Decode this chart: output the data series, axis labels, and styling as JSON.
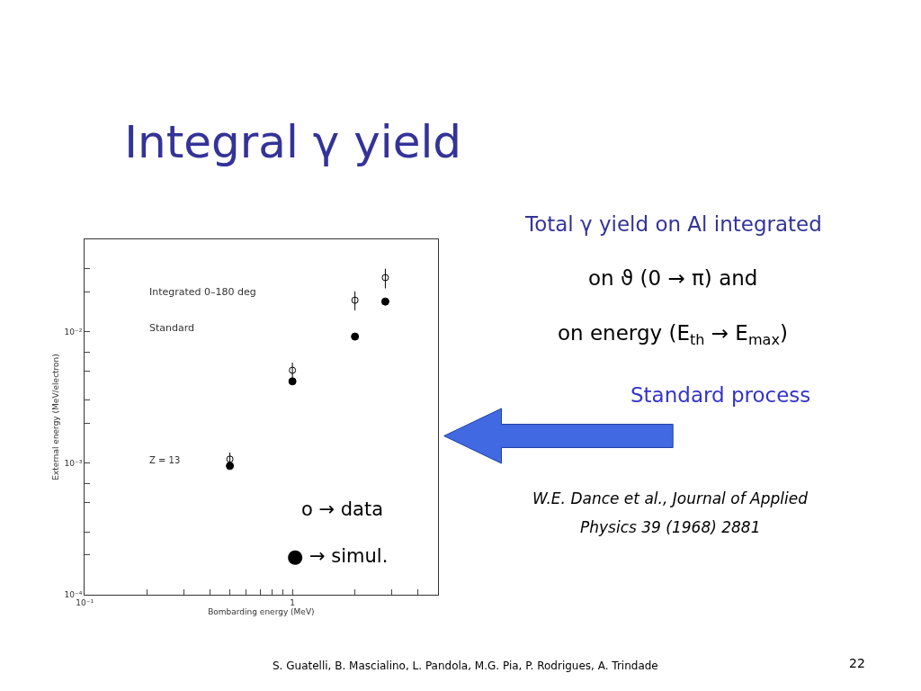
{
  "chart_data": {
    "type": "scatter",
    "title": "Integral γ yield",
    "xlabel": "Bombarding energy (MeV)",
    "ylabel": "External energy (MeV/electron)",
    "log": "xy",
    "xlim": [
      0.1,
      5
    ],
    "ylim": [
      0.0001,
      0.05
    ],
    "xticks": [
      {
        "value": 0.1,
        "label": "10⁻¹"
      },
      {
        "value": 0.2,
        "label": null
      },
      {
        "value": 0.3,
        "label": null
      },
      {
        "value": 0.4,
        "label": null
      },
      {
        "value": 0.5,
        "label": null
      },
      {
        "value": 0.6,
        "label": null
      },
      {
        "value": 0.7,
        "label": null
      },
      {
        "value": 0.8,
        "label": null
      },
      {
        "value": 0.9,
        "label": null
      },
      1,
      {
        "value": 2,
        "label": null
      },
      {
        "value": 3,
        "label": null
      },
      {
        "value": 4,
        "label": null
      }
    ],
    "yticks": [
      {
        "value": 0.0001,
        "label": "10⁻⁴"
      },
      {
        "value": 0.0002,
        "label": null
      },
      {
        "value": 0.0003,
        "label": null
      },
      {
        "value": 0.0005,
        "label": null
      },
      {
        "value": 0.0007,
        "label": null
      },
      {
        "value": 0.001,
        "label": "10⁻³"
      },
      {
        "value": 0.002,
        "label": null
      },
      {
        "value": 0.003,
        "label": null
      },
      {
        "value": 0.005,
        "label": null
      },
      {
        "value": 0.007,
        "label": null
      },
      {
        "value": 0.01,
        "label": "10⁻²"
      },
      {
        "value": 0.02,
        "label": null
      },
      {
        "value": 0.03,
        "label": null
      }
    ],
    "x": [
      0.5,
      1,
      2,
      2.8
    ],
    "series": [
      {
        "color": "#000000",
        "marker": "circle",
        "values": [
          0.00107,
          0.00507,
          0.0173,
          0.0257
        ],
        "errors": [
          [
            0.001,
            0.0012
          ],
          [
            0.0044,
            0.0058
          ],
          [
            0.0145,
            0.0202
          ],
          [
            0.0213,
            0.03
          ]
        ]
      },
      {
        "color": "#000000",
        "marker": "circle",
        "values": [
          0.00095,
          0.00418,
          0.00915,
          0.0169
        ]
      }
    ],
    "annotations": [
      "Integrated 0–180 deg",
      "Standard",
      "Z = 13",
      "o → data",
      "● → simul.",
      "Total γ yield on Al integrated",
      "on ϑ (0 → π) and",
      "on energy (E$_{th}$ → E$_{max}$)",
      "Standard process",
      "W.E. Dance et al., Journal of Applied",
      "Physics 39 (1968) 2881",
      "S. Guatelli, B. Mascialino, L. Pandola, M.G. Pia, P. Rodrigues, A. Trindade",
      "22"
    ]
  }
}
